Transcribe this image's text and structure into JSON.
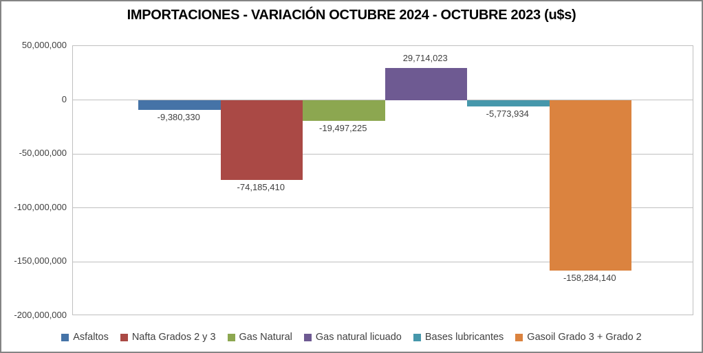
{
  "title": "IMPORTACIONES - VARIACIÓN OCTUBRE 2024 - OCTUBRE 2023 (u$s)",
  "chart_data": {
    "type": "bar",
    "title": "IMPORTACIONES - VARIACIÓN OCTUBRE 2024 - OCTUBRE 2023 (u$s)",
    "categories": [
      "Asfaltos",
      "Nafta Grados 2 y 3",
      "Gas Natural",
      "Gas natural licuado",
      "Bases lubricantes",
      "Gasoil Grado 3 + Grado 2"
    ],
    "series": [
      {
        "name": "Asfaltos",
        "value": -9380330,
        "label": "-9,380,330",
        "color": "#4573A7"
      },
      {
        "name": "Nafta Grados 2 y 3",
        "value": -74185410,
        "label": "-74,185,410",
        "color": "#AA4945"
      },
      {
        "name": "Gas Natural",
        "value": -19497225,
        "label": "-19,497,225",
        "color": "#8CA750"
      },
      {
        "name": "Gas natural licuado",
        "value": 29714023,
        "label": "29,714,023",
        "color": "#6E5A92"
      },
      {
        "name": "Bases lubricantes",
        "value": -5773934,
        "label": "-5,773,934",
        "color": "#4697AB"
      },
      {
        "name": "Gasoil Grado 3 + Grado 2",
        "value": -158284140,
        "label": "-158,284,140",
        "color": "#DB833F"
      }
    ],
    "xlabel": "",
    "ylabel": "",
    "ylim": [
      -200000000,
      50000000
    ],
    "yticks": [
      {
        "value": 50000000,
        "label": "50,000,000"
      },
      {
        "value": 0,
        "label": "0"
      },
      {
        "value": -50000000,
        "label": "-50,000,000"
      },
      {
        "value": -100000000,
        "label": "-100,000,000"
      },
      {
        "value": -150000000,
        "label": "-150,000,000"
      },
      {
        "value": -200000000,
        "label": "-200,000,000"
      }
    ],
    "grid": true,
    "legend_position": "bottom",
    "grid_color": "#BFBFBF",
    "label_color": "#3F3F3F",
    "background_color": "#FFFFFF"
  }
}
